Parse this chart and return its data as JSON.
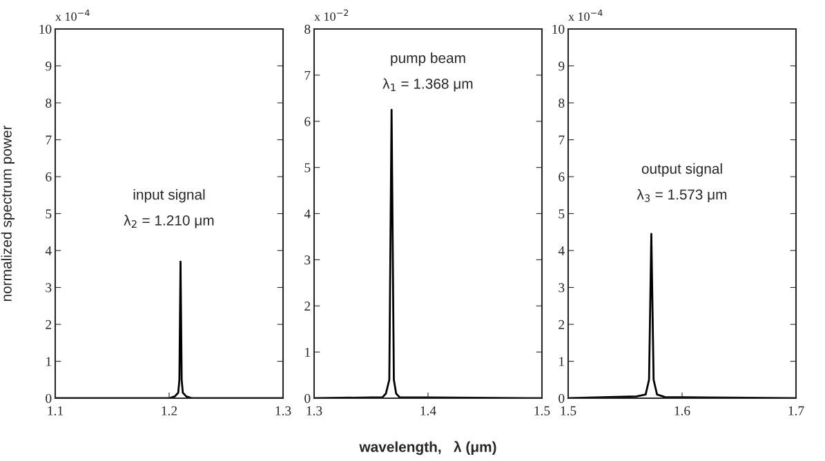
{
  "chart_data": [
    {
      "type": "line",
      "ylabel": "normalized spectrum power",
      "xlim": [
        1.1,
        1.3
      ],
      "xticks": [
        1.1,
        1.2,
        1.3
      ],
      "ylim": [
        0,
        10
      ],
      "yticks": [
        0,
        1,
        2,
        3,
        4,
        5,
        6,
        7,
        8,
        9,
        10
      ],
      "grid": false,
      "annotations": [
        "x 10$^{−4}$",
        "input signal",
        "λ$_{2}$ = 1.210 μm"
      ],
      "series": [
        {
          "color": "#000000",
          "x": [
            1.1,
            1.2,
            1.205,
            1.208,
            1.209,
            1.21,
            1.211,
            1.212,
            1.215,
            1.22,
            1.3
          ],
          "values": [
            0,
            0,
            0.05,
            0.15,
            0.5,
            3.7,
            0.5,
            0.15,
            0.05,
            0,
            0
          ]
        }
      ]
    },
    {
      "type": "line",
      "xlabel": "wavelength,   λ (μm)",
      "xlim": [
        1.3,
        1.5
      ],
      "xticks": [
        1.3,
        1.4,
        1.5
      ],
      "ylim": [
        0,
        8
      ],
      "yticks": [
        0,
        1,
        2,
        3,
        4,
        5,
        6,
        7,
        8
      ],
      "grid": false,
      "annotations": [
        "x 10$^{−2}$",
        "pump beam",
        "λ$_{1}$ = 1.368 μm"
      ],
      "series": [
        {
          "color": "#000000",
          "x": [
            1.3,
            1.36,
            1.363,
            1.366,
            1.368,
            1.37,
            1.372,
            1.375,
            1.5
          ],
          "values": [
            0,
            0.02,
            0.1,
            0.4,
            6.25,
            0.4,
            0.1,
            0.02,
            0
          ]
        }
      ]
    },
    {
      "type": "line",
      "xlim": [
        1.5,
        1.7
      ],
      "xticks": [
        1.5,
        1.6,
        1.7
      ],
      "ylim": [
        0,
        10
      ],
      "yticks": [
        0,
        1,
        2,
        3,
        4,
        5,
        6,
        7,
        8,
        9,
        10
      ],
      "grid": false,
      "annotations": [
        "x 10$^{−4}$",
        "output signal",
        "λ$_{3}$ = 1.573 μm"
      ],
      "series": [
        {
          "color": "#000000",
          "x": [
            1.5,
            1.56,
            1.568,
            1.571,
            1.573,
            1.575,
            1.578,
            1.585,
            1.7
          ],
          "values": [
            0,
            0.05,
            0.1,
            0.5,
            4.45,
            0.5,
            0.1,
            0.03,
            0
          ]
        }
      ]
    }
  ]
}
